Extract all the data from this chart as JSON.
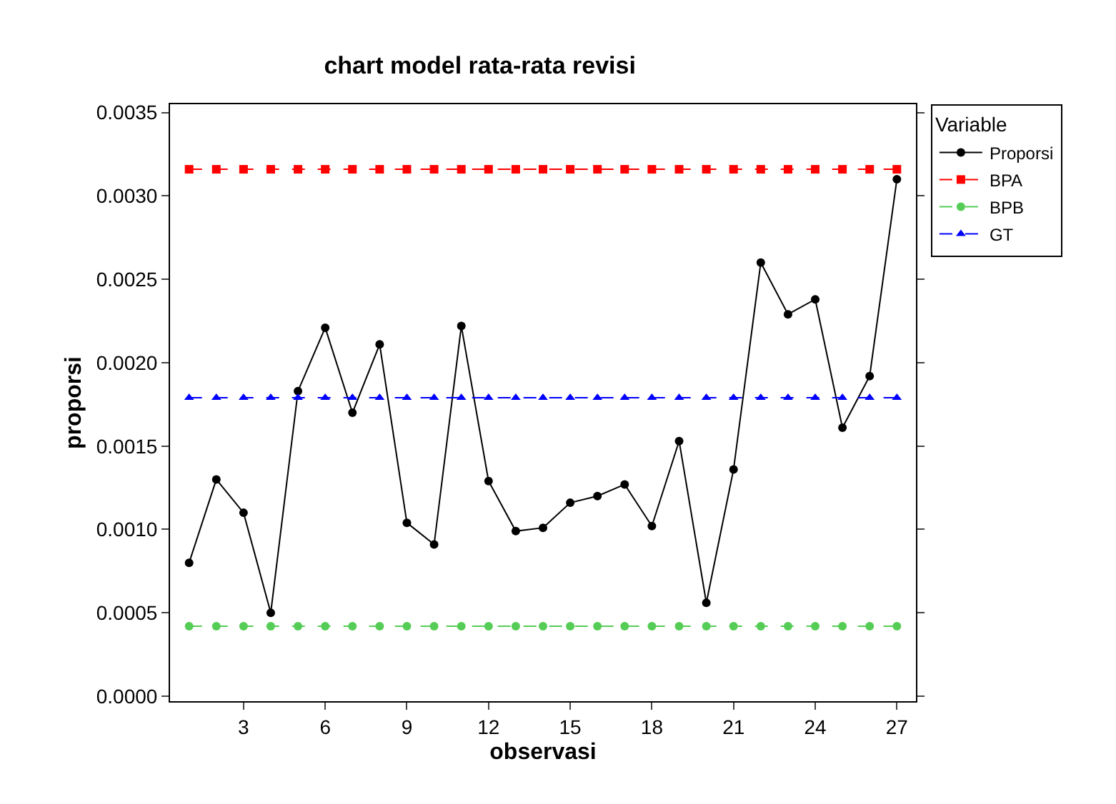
{
  "chart_data": {
    "type": "line",
    "title": "chart model rata-rata revisi",
    "xlabel": "observasi",
    "ylabel": "proporsi",
    "legend_title": "Variable",
    "x": [
      1,
      2,
      3,
      4,
      5,
      6,
      7,
      8,
      9,
      10,
      11,
      12,
      13,
      14,
      15,
      16,
      17,
      18,
      19,
      20,
      21,
      22,
      23,
      24,
      25,
      26,
      27
    ],
    "series": [
      {
        "name": "Proporsi",
        "color": "#000000",
        "marker": "circle",
        "line_style": "solid",
        "values": [
          0.0008,
          0.0013,
          0.0011,
          0.0005,
          0.00183,
          0.00221,
          0.0017,
          0.00211,
          0.00104,
          0.00091,
          0.00222,
          0.00129,
          0.00099,
          0.00101,
          0.00116,
          0.0012,
          0.00127,
          0.00102,
          0.00153,
          0.00056,
          0.00136,
          0.0026,
          0.00229,
          0.00238,
          0.00161,
          0.00192,
          0.0031
        ]
      },
      {
        "name": "BPA",
        "color": "#ff0000",
        "marker": "square",
        "line_style": "dashed",
        "values": [
          0.00316,
          0.00316,
          0.00316,
          0.00316,
          0.00316,
          0.00316,
          0.00316,
          0.00316,
          0.00316,
          0.00316,
          0.00316,
          0.00316,
          0.00316,
          0.00316,
          0.00316,
          0.00316,
          0.00316,
          0.00316,
          0.00316,
          0.00316,
          0.00316,
          0.00316,
          0.00316,
          0.00316,
          0.00316,
          0.00316,
          0.00316
        ]
      },
      {
        "name": "BPB",
        "color": "#55cc55",
        "marker": "circle",
        "line_style": "dashed",
        "values": [
          0.00042,
          0.00042,
          0.00042,
          0.00042,
          0.00042,
          0.00042,
          0.00042,
          0.00042,
          0.00042,
          0.00042,
          0.00042,
          0.00042,
          0.00042,
          0.00042,
          0.00042,
          0.00042,
          0.00042,
          0.00042,
          0.00042,
          0.00042,
          0.00042,
          0.00042,
          0.00042,
          0.00042,
          0.00042,
          0.00042,
          0.00042
        ]
      },
      {
        "name": "GT",
        "color": "#0000ff",
        "marker": "triangle",
        "line_style": "dashed",
        "values": [
          0.00179,
          0.00179,
          0.00179,
          0.00179,
          0.00179,
          0.00179,
          0.00179,
          0.00179,
          0.00179,
          0.00179,
          0.00179,
          0.00179,
          0.00179,
          0.00179,
          0.00179,
          0.00179,
          0.00179,
          0.00179,
          0.00179,
          0.00179,
          0.00179,
          0.00179,
          0.00179,
          0.00179,
          0.00179,
          0.00179,
          0.00179
        ]
      }
    ],
    "xlim": [
      0.3,
      27.7
    ],
    "xticks": [
      3,
      6,
      9,
      12,
      15,
      18,
      21,
      24,
      27
    ],
    "ylim": [
      -3e-05,
      0.00355
    ],
    "yticks": [
      {
        "value": 0,
        "label": "0.0000"
      },
      {
        "value": 0.0005,
        "label": "0.0005"
      },
      {
        "value": 0.001,
        "label": "0.0010"
      },
      {
        "value": 0.0015,
        "label": "0.0015"
      },
      {
        "value": 0.002,
        "label": "0.0020"
      },
      {
        "value": 0.0025,
        "label": "0.0025"
      },
      {
        "value": 0.003,
        "label": "0.0030"
      },
      {
        "value": 0.0035,
        "label": "0.0035"
      }
    ],
    "grid": false,
    "legend": "top right"
  }
}
